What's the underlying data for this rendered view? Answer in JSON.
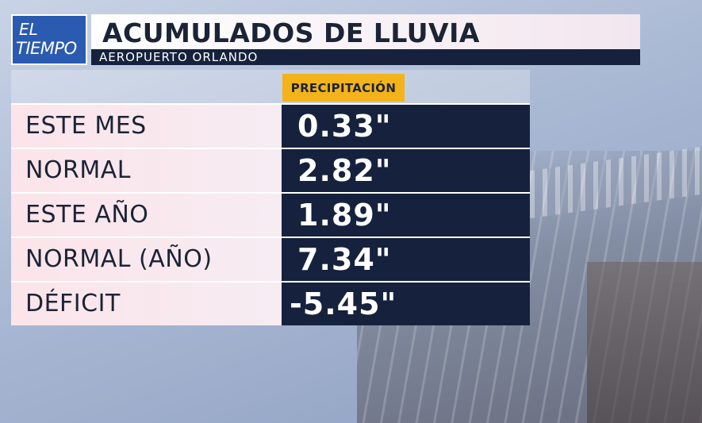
{
  "logo": {
    "line1": "EL",
    "line2": "TIEMPO"
  },
  "header": {
    "title": "ACUMULADOS DE LLUVIA",
    "subtitle": "AEROPUERTO ORLANDO"
  },
  "table": {
    "column_header": "PRECIPITACIÓN",
    "rows": [
      {
        "label": "ESTE MES",
        "value": "0.33\""
      },
      {
        "label": "NORMAL",
        "value": "2.82\""
      },
      {
        "label": "ESTE AÑO",
        "value": "1.89\""
      },
      {
        "label": "NORMAL (AÑO)",
        "value": "7.34\""
      },
      {
        "label": "DÉFICIT",
        "value": "-5.45\""
      }
    ]
  },
  "colors": {
    "navy": "#16223d",
    "accent": "#f4b31a",
    "logo_blue": "#2b5bb0",
    "label_pink": "#fbe4ea"
  }
}
